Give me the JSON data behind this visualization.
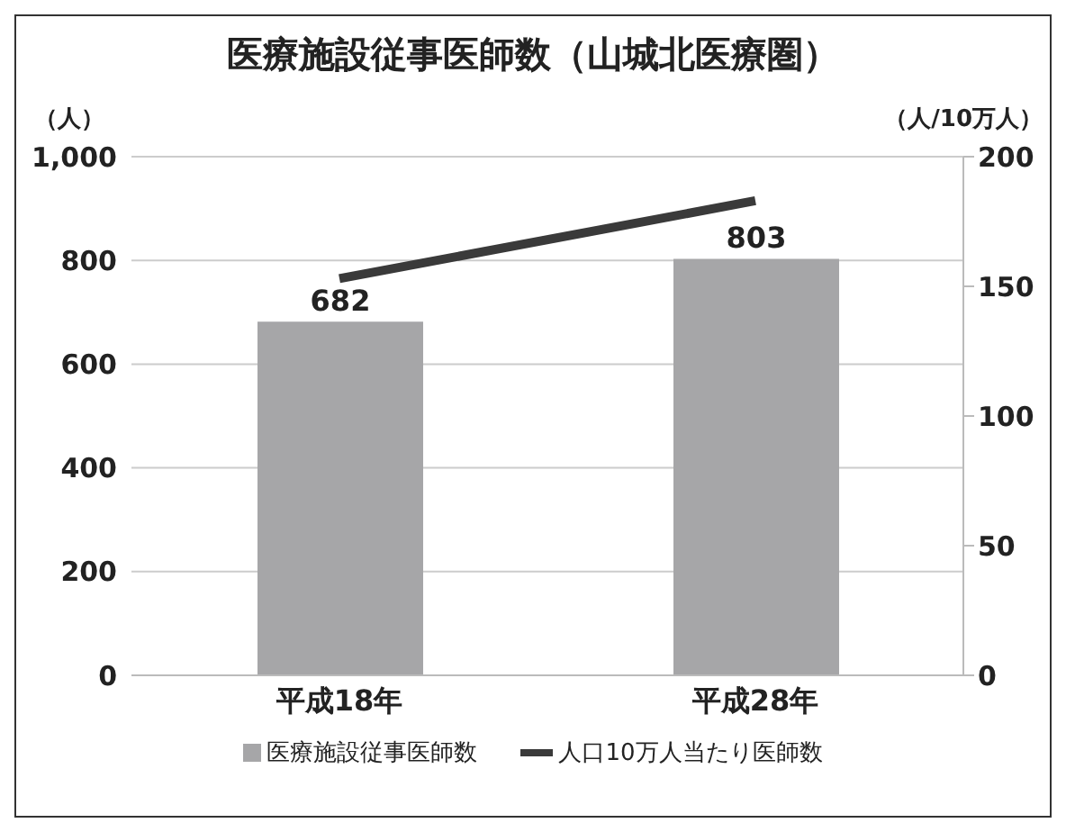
{
  "chart_data": {
    "type": "bar",
    "title": "医療施設従事医師数（山城北医療圏）",
    "ylabel": "（人）",
    "y2label": "（人/10万人）",
    "categories": [
      "平成18年",
      "平成28年"
    ],
    "series": [
      {
        "name": "医療施設従事医師数",
        "color": "#a6a6a8",
        "values": [
          682,
          803
        ],
        "value_labels": [
          "682",
          "803"
        ]
      },
      {
        "name": "人口10万人当たり医師数",
        "type": "line",
        "axis": "y2",
        "color": "#3a3a3a",
        "values": [
          153,
          183
        ]
      }
    ],
    "ylim": [
      0,
      1000
    ],
    "yticks": [
      0,
      200,
      400,
      600,
      800,
      {
        "value": 1000,
        "label": "1,000"
      }
    ],
    "y2lim": [
      0,
      200
    ],
    "y2ticks": [
      0,
      50,
      100,
      150,
      200
    ],
    "grid": "y",
    "legend": "bottom",
    "marker": "none"
  }
}
